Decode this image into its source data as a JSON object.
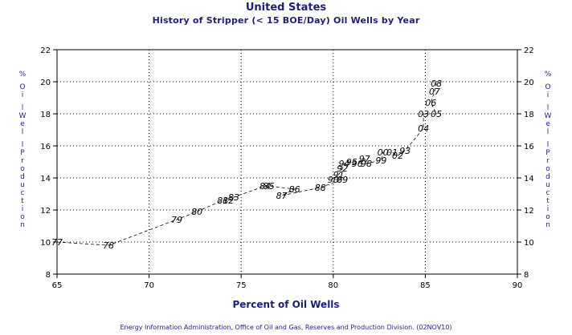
{
  "chart_data": {
    "type": "scatter",
    "title": "United States",
    "subtitle": "History of Stripper (< 15 BOE/Day) Oil Wells by Year",
    "xlabel": "Percent of Oil Wells",
    "ylabel": "% Oil Well Production",
    "xlim": [
      65,
      90
    ],
    "ylim": [
      8,
      22
    ],
    "xticks": [
      65,
      70,
      75,
      80,
      85,
      90
    ],
    "yticks": [
      8,
      10,
      12,
      14,
      16,
      18,
      20,
      22
    ],
    "grid": true,
    "line_style": "dashed",
    "point_labels_as_markers": true,
    "points": [
      {
        "label": "77",
        "x": 65.0,
        "y": 10.0
      },
      {
        "label": "78",
        "x": 67.8,
        "y": 9.8
      },
      {
        "label": "79",
        "x": 71.5,
        "y": 11.4
      },
      {
        "label": "80",
        "x": 72.6,
        "y": 11.9
      },
      {
        "label": "81",
        "x": 74.0,
        "y": 12.6
      },
      {
        "label": "82",
        "x": 74.3,
        "y": 12.6
      },
      {
        "label": "83",
        "x": 74.6,
        "y": 12.8
      },
      {
        "label": "84",
        "x": 76.3,
        "y": 13.5
      },
      {
        "label": "85",
        "x": 76.5,
        "y": 13.5
      },
      {
        "label": "86",
        "x": 77.9,
        "y": 13.3
      },
      {
        "label": "87",
        "x": 77.2,
        "y": 12.9
      },
      {
        "label": "88",
        "x": 79.3,
        "y": 13.4
      },
      {
        "label": "89",
        "x": 80.5,
        "y": 13.9
      },
      {
        "label": "90",
        "x": 80.0,
        "y": 13.9
      },
      {
        "label": "91",
        "x": 80.3,
        "y": 14.2
      },
      {
        "label": "92",
        "x": 80.5,
        "y": 14.6
      },
      {
        "label": "93",
        "x": 83.9,
        "y": 15.7
      },
      {
        "label": "94",
        "x": 80.6,
        "y": 14.9
      },
      {
        "label": "95",
        "x": 81.0,
        "y": 15.0
      },
      {
        "label": "96",
        "x": 81.3,
        "y": 14.9
      },
      {
        "label": "97",
        "x": 81.7,
        "y": 15.2
      },
      {
        "label": "98",
        "x": 81.8,
        "y": 14.9
      },
      {
        "label": "99",
        "x": 82.6,
        "y": 15.1
      },
      {
        "label": "00",
        "x": 82.7,
        "y": 15.6
      },
      {
        "label": "01",
        "x": 83.2,
        "y": 15.6
      },
      {
        "label": "02",
        "x": 83.5,
        "y": 15.4
      },
      {
        "label": "03",
        "x": 84.9,
        "y": 18.0
      },
      {
        "label": "04",
        "x": 84.9,
        "y": 17.1
      },
      {
        "label": "05",
        "x": 85.6,
        "y": 18.0
      },
      {
        "label": "06",
        "x": 85.3,
        "y": 18.7
      },
      {
        "label": "07",
        "x": 85.5,
        "y": 19.4
      },
      {
        "label": "08",
        "x": 85.6,
        "y": 19.9
      }
    ],
    "line_order": [
      "77",
      "78",
      "79",
      "80",
      "81",
      "82",
      "83",
      "84",
      "85",
      "86",
      "87",
      "88",
      "89",
      "90",
      "91",
      "92",
      "94",
      "95",
      "96",
      "97",
      "98",
      "99",
      "00",
      "01",
      "02",
      "93",
      "04",
      "03",
      "05",
      "06",
      "07",
      "08"
    ]
  },
  "footer": "Energy Information Administration, Office of Oil and Gas, Reserves and Production Division. (02NOV10)",
  "colors": {
    "title": "#1e1e78",
    "axis": "#000000",
    "grid": "#000000",
    "point_label": "#000000"
  }
}
